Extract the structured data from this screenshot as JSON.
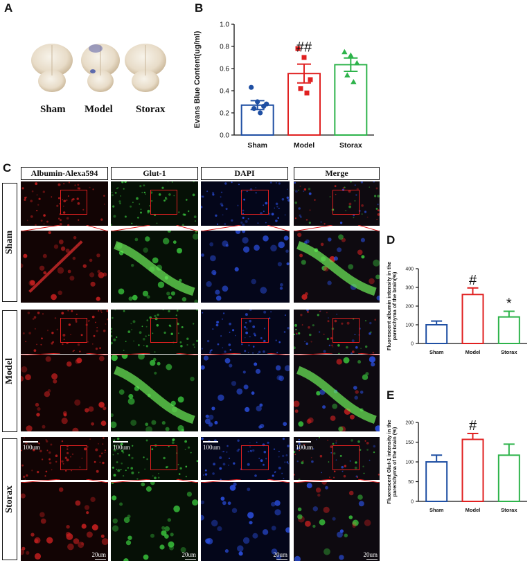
{
  "panels": {
    "A": "A",
    "B": "B",
    "C": "C",
    "D": "D",
    "E": "E"
  },
  "brain_labels": [
    "Sham",
    "Model",
    "Storax"
  ],
  "if_columns": [
    "Albumin-Alexa594",
    "Glut-1",
    "DAPI",
    "Merge"
  ],
  "if_rows": [
    "Sham",
    "Model",
    "Storax"
  ],
  "scale_bars": {
    "overview": "100um",
    "zoom": "20um"
  },
  "colors": {
    "sham": "#1f4fa3",
    "model": "#e02020",
    "storax": "#2db34a",
    "roi_box": "#e02020"
  },
  "chart_data": [
    {
      "type": "bar",
      "panel": "B",
      "categories": [
        "Sham",
        "Model",
        "Storax"
      ],
      "values": [
        0.27,
        0.555,
        0.635
      ],
      "errors": [
        0.04,
        0.085,
        0.06
      ],
      "points": [
        [
          0.43,
          0.3,
          0.26,
          0.24,
          0.2,
          0.28
        ],
        [
          0.78,
          0.7,
          0.5,
          0.42,
          0.38
        ],
        [
          0.75,
          0.72,
          0.65,
          0.54,
          0.48
        ]
      ],
      "ylabel": "Evans Blue Content(ug/ml)",
      "ylim": [
        0.0,
        1.0
      ],
      "yticks": [
        "0.0",
        "0.2",
        "0.4",
        "0.6",
        "0.8",
        "1.0"
      ],
      "annotations": [
        {
          "category": "Model",
          "text": "##"
        }
      ]
    },
    {
      "type": "bar",
      "panel": "D",
      "categories": [
        "Sham",
        "Model",
        "Storax"
      ],
      "values": [
        100,
        262,
        142
      ],
      "errors": [
        20,
        35,
        30
      ],
      "ylabel": "Fluorescent albumin intensity in the parenchyma of the brain(%)",
      "ylim": [
        0,
        400
      ],
      "yticks": [
        "0",
        "100",
        "200",
        "300",
        "400"
      ],
      "annotations": [
        {
          "category": "Model",
          "text": "#"
        },
        {
          "category": "Storax",
          "text": "*"
        }
      ]
    },
    {
      "type": "bar",
      "panel": "E",
      "categories": [
        "Sham",
        "Model",
        "Storax"
      ],
      "values": [
        100,
        157,
        117
      ],
      "errors": [
        17,
        15,
        28
      ],
      "ylabel": "Fluorescent Glut-1 intensity in the parenchyma of the brain (%)",
      "ylim": [
        0,
        200
      ],
      "yticks": [
        "0",
        "50",
        "100",
        "150",
        "200"
      ],
      "annotations": [
        {
          "category": "Model",
          "text": "#"
        }
      ]
    }
  ]
}
